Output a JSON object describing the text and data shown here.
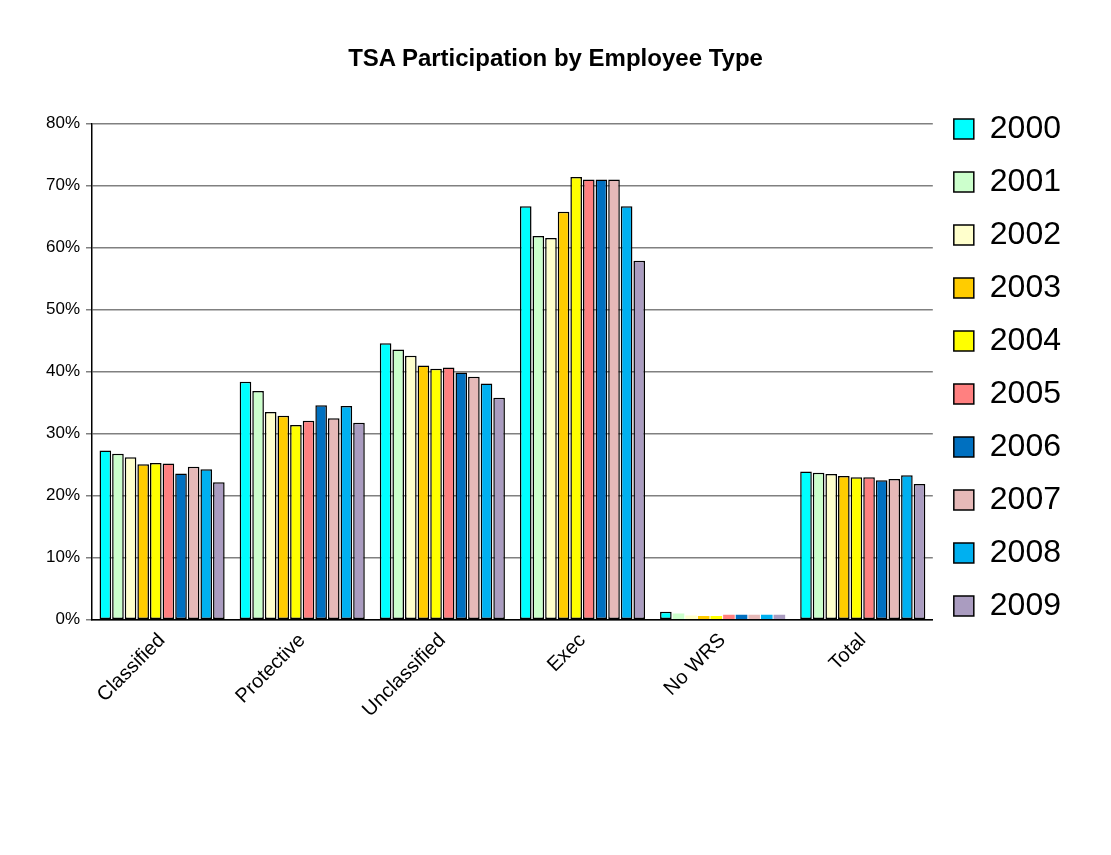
{
  "chart_data": {
    "type": "bar",
    "title": "TSA Participation by Employee Type",
    "categories": [
      "Classified",
      "Protective",
      "Unclassified",
      "Exec",
      "No WRS",
      "Total"
    ],
    "series": [
      {
        "name": "2000",
        "color": "#00ffff",
        "values": [
          27.3,
          38.4,
          44.6,
          66.7,
          1.3,
          23.9
        ]
      },
      {
        "name": "2001",
        "color": "#ccffcc",
        "values": [
          26.8,
          36.9,
          43.6,
          61.9,
          1.0,
          23.7
        ]
      },
      {
        "name": "2002",
        "color": "#ffffcc",
        "values": [
          26.2,
          33.5,
          42.6,
          61.6,
          0.7,
          23.5
        ]
      },
      {
        "name": "2003",
        "color": "#ffcc00",
        "values": [
          25.1,
          32.9,
          41.0,
          65.8,
          0.6,
          23.2
        ]
      },
      {
        "name": "2004",
        "color": "#ffff00",
        "values": [
          25.3,
          31.4,
          40.5,
          71.4,
          0.6,
          23.0
        ]
      },
      {
        "name": "2005",
        "color": "#ff8080",
        "values": [
          25.2,
          32.1,
          40.7,
          71.0,
          0.8,
          23.0
        ]
      },
      {
        "name": "2006",
        "color": "#0070c0",
        "values": [
          23.6,
          34.6,
          39.9,
          71.0,
          0.8,
          22.5
        ]
      },
      {
        "name": "2007",
        "color": "#e6b9b8",
        "values": [
          24.7,
          32.5,
          39.2,
          71.0,
          0.8,
          22.7
        ]
      },
      {
        "name": "2008",
        "color": "#00b0f0",
        "values": [
          24.3,
          34.5,
          38.1,
          66.7,
          0.8,
          23.3
        ]
      },
      {
        "name": "2009",
        "color": "#aa9cc0",
        "values": [
          22.2,
          31.8,
          35.8,
          57.9,
          0.8,
          21.9
        ]
      }
    ],
    "ylim": [
      0,
      80
    ],
    "yticks": [
      {
        "value": 0,
        "label": "0%"
      },
      {
        "value": 10,
        "label": "10%"
      },
      {
        "value": 20,
        "label": "20%"
      },
      {
        "value": 30,
        "label": "30%"
      },
      {
        "value": 40,
        "label": "40%"
      },
      {
        "value": 50,
        "label": "50%"
      },
      {
        "value": 60,
        "label": "60%"
      },
      {
        "value": 70,
        "label": "70%"
      },
      {
        "value": 80,
        "label": "80%"
      }
    ],
    "grid": "y",
    "legend": "right"
  }
}
